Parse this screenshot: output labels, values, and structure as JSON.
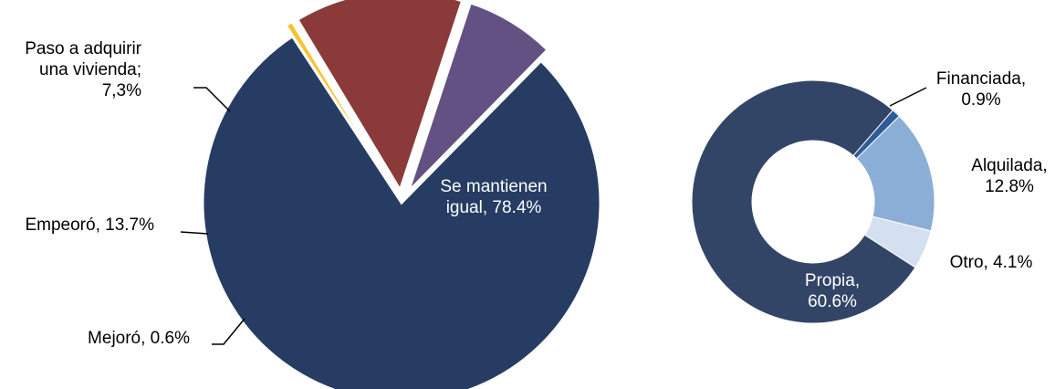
{
  "chart_data": [
    {
      "type": "pie",
      "title": "",
      "slices": [
        {
          "label": "Se mantienen igual",
          "value": 78.4,
          "display": [
            "Se mantienen",
            "igual, 78.4%"
          ],
          "color": "#263c63",
          "exploded": false
        },
        {
          "label": "Mejoró",
          "value": 0.6,
          "display": [
            "Mejoró, 0.6%"
          ],
          "color": "#f5c531",
          "exploded": true
        },
        {
          "label": "Empeoró",
          "value": 13.7,
          "display": [
            "Empeoró, 13.7%"
          ],
          "color": "#8b3a3a",
          "exploded": true
        },
        {
          "label": "Paso a adquirir una vivienda",
          "value": 7.3,
          "display": [
            "Paso a adquirir",
            "una vivienda;",
            "7,3%"
          ],
          "color": "#635184",
          "exploded": true
        }
      ]
    },
    {
      "type": "pie",
      "variant": "donut",
      "title": "",
      "slices": [
        {
          "label": "Financiada",
          "value": 0.9,
          "display": [
            "Financiada,",
            "0.9%"
          ],
          "color": "#2e5b99"
        },
        {
          "label": "Alquilada",
          "value": 12.8,
          "display": [
            "Alquilada,",
            "12.8%"
          ],
          "color": "#8aaed6"
        },
        {
          "label": "Otro",
          "value": 4.1,
          "display": [
            "Otro, 4.1%"
          ],
          "color": "#d4e0ef"
        },
        {
          "label": "Propia",
          "value": 60.6,
          "display": [
            "Propia,",
            "60.6%"
          ],
          "color": "#324567"
        }
      ]
    }
  ]
}
